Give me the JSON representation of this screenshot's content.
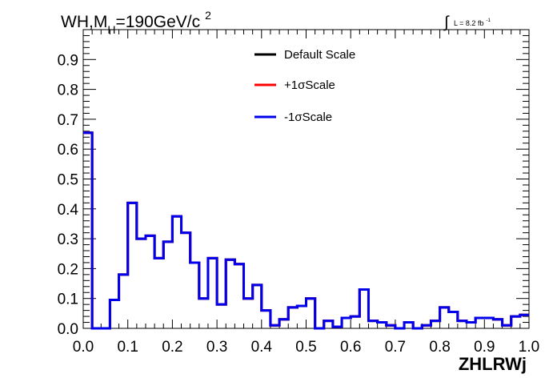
{
  "chart_data": {
    "type": "line",
    "title_prefix": "WH,M",
    "title_sub": "H",
    "title_suffix": "=190GeV/c",
    "title_sup": "2",
    "lumi_symbol": "∫",
    "lumi_text": "L = 8.2 fb",
    "lumi_sup": "-1",
    "xlabel": "ZHLRWj",
    "ylabel": "",
    "xlim": [
      0,
      1
    ],
    "ylim": [
      0,
      1
    ],
    "x_ticks": [
      "0.0",
      "0.1",
      "0.2",
      "0.3",
      "0.4",
      "0.5",
      "0.6",
      "0.7",
      "0.8",
      "0.9",
      "1.0"
    ],
    "y_ticks": [
      "0.0",
      "0.1",
      "0.2",
      "0.3",
      "0.4",
      "0.5",
      "0.6",
      "0.7",
      "0.8",
      "0.9"
    ],
    "grid": false,
    "legend_position": "top-center",
    "bin_edges": [
      0.0,
      0.02,
      0.06,
      0.08,
      0.1,
      0.12,
      0.14,
      0.16,
      0.18,
      0.2,
      0.22,
      0.24,
      0.26,
      0.28,
      0.3,
      0.32,
      0.34,
      0.36,
      0.38,
      0.4,
      0.42,
      0.44,
      0.46,
      0.48,
      0.5,
      0.52,
      0.54,
      0.56,
      0.58,
      0.6,
      0.62,
      0.64,
      0.66,
      0.68,
      0.7,
      0.72,
      0.74,
      0.76,
      0.78,
      0.8,
      0.82,
      0.84,
      0.86,
      0.88,
      0.9,
      0.92,
      0.94,
      0.96,
      0.98,
      1.0
    ],
    "series": [
      {
        "name": "Default Scale",
        "color": "#000000",
        "values": [
          0.655,
          0.0,
          0.095,
          0.18,
          0.42,
          0.3,
          0.31,
          0.235,
          0.29,
          0.375,
          0.32,
          0.22,
          0.1,
          0.235,
          0.08,
          0.23,
          0.215,
          0.1,
          0.145,
          0.06,
          0.01,
          0.03,
          0.07,
          0.075,
          0.1,
          0.0,
          0.025,
          0.005,
          0.035,
          0.04,
          0.13,
          0.025,
          0.02,
          0.01,
          0.0,
          0.02,
          0.0,
          0.01,
          0.025,
          0.07,
          0.055,
          0.025,
          0.02,
          0.035,
          0.035,
          0.03,
          0.01,
          0.04,
          0.045
        ]
      },
      {
        "name": "+1σScale",
        "color": "#ff0000",
        "values": [
          0.655,
          0.0,
          0.095,
          0.18,
          0.42,
          0.3,
          0.31,
          0.235,
          0.29,
          0.375,
          0.32,
          0.22,
          0.1,
          0.235,
          0.08,
          0.23,
          0.215,
          0.1,
          0.145,
          0.06,
          0.01,
          0.03,
          0.07,
          0.075,
          0.1,
          0.0,
          0.025,
          0.005,
          0.035,
          0.04,
          0.13,
          0.025,
          0.02,
          0.01,
          0.0,
          0.02,
          0.0,
          0.01,
          0.025,
          0.07,
          0.055,
          0.025,
          0.02,
          0.035,
          0.035,
          0.03,
          0.01,
          0.04,
          0.045
        ]
      },
      {
        "name": "-1σScale",
        "color": "#0000ee",
        "values": [
          0.655,
          0.0,
          0.095,
          0.18,
          0.42,
          0.3,
          0.31,
          0.235,
          0.29,
          0.375,
          0.32,
          0.22,
          0.1,
          0.235,
          0.08,
          0.23,
          0.215,
          0.1,
          0.145,
          0.06,
          0.01,
          0.03,
          0.07,
          0.075,
          0.1,
          0.0,
          0.025,
          0.005,
          0.035,
          0.04,
          0.13,
          0.025,
          0.02,
          0.01,
          0.0,
          0.02,
          0.0,
          0.01,
          0.025,
          0.07,
          0.055,
          0.025,
          0.02,
          0.035,
          0.035,
          0.03,
          0.01,
          0.04,
          0.045
        ]
      }
    ]
  }
}
